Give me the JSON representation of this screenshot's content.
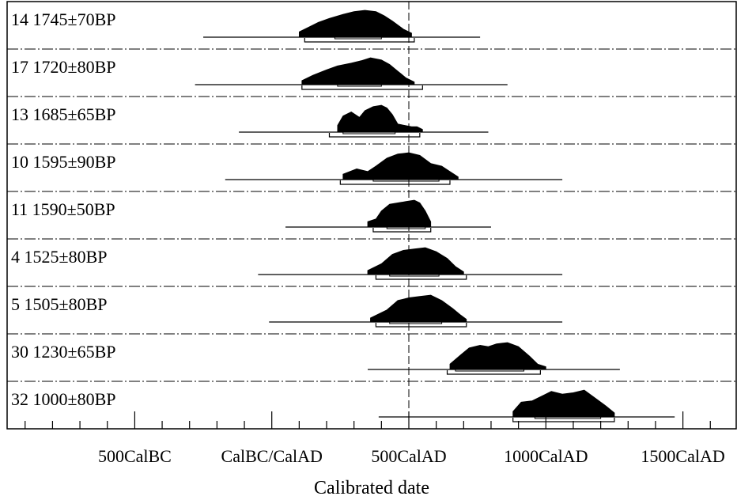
{
  "chart_data": {
    "type": "area",
    "title": "",
    "xlabel": "Calibrated date",
    "ylabel": "",
    "xlim": [
      -950,
      1720
    ],
    "x_ticks": [
      {
        "value": -500,
        "label": "500CalBC"
      },
      {
        "value": 0,
        "label": "CalBC/CalAD"
      },
      {
        "value": 500,
        "label": "500CalAD"
      },
      {
        "value": 1000,
        "label": "1000CalAD"
      },
      {
        "value": 1500,
        "label": "1500CalAD"
      }
    ],
    "reference_line_x": 500,
    "samples": [
      {
        "label": "14 1745±70BP",
        "range_start": -250,
        "range_end": 760,
        "peaks": [
          [
            100,
            0.2
          ],
          [
            130,
            0.35
          ],
          [
            170,
            0.55
          ],
          [
            210,
            0.7
          ],
          [
            260,
            0.85
          ],
          [
            300,
            0.95
          ],
          [
            340,
            1.0
          ],
          [
            380,
            0.95
          ],
          [
            410,
            0.8
          ],
          [
            440,
            0.6
          ],
          [
            480,
            0.3
          ],
          [
            510,
            0.15
          ]
        ],
        "sigma1": [
          [
            230,
            400
          ]
        ],
        "sigma2": [
          [
            120,
            520
          ]
        ]
      },
      {
        "label": "17 1720±80BP",
        "range_start": -280,
        "range_end": 860,
        "peaks": [
          [
            110,
            0.15
          ],
          [
            150,
            0.35
          ],
          [
            200,
            0.55
          ],
          [
            240,
            0.7
          ],
          [
            290,
            0.8
          ],
          [
            330,
            0.9
          ],
          [
            360,
            1.0
          ],
          [
            400,
            0.92
          ],
          [
            430,
            0.75
          ],
          [
            460,
            0.5
          ],
          [
            490,
            0.25
          ],
          [
            520,
            0.1
          ]
        ],
        "sigma1": [
          [
            240,
            400
          ]
        ],
        "sigma2": [
          [
            110,
            550
          ]
        ]
      },
      {
        "label": "13 1685±65BP",
        "range_start": -120,
        "range_end": 790,
        "peaks": [
          [
            240,
            0.25
          ],
          [
            260,
            0.6
          ],
          [
            290,
            0.75
          ],
          [
            320,
            0.55
          ],
          [
            340,
            0.8
          ],
          [
            370,
            0.95
          ],
          [
            400,
            1.0
          ],
          [
            420,
            0.9
          ],
          [
            440,
            0.65
          ],
          [
            460,
            0.3
          ],
          [
            510,
            0.2
          ],
          [
            530,
            0.2
          ],
          [
            550,
            0.1
          ]
        ],
        "sigma1": [
          [
            260,
            450
          ]
        ],
        "sigma2": [
          [
            210,
            540
          ]
        ]
      },
      {
        "label": "10 1595±90BP",
        "range_start": -170,
        "range_end": 1060,
        "peaks": [
          [
            260,
            0.2
          ],
          [
            310,
            0.4
          ],
          [
            350,
            0.3
          ],
          [
            380,
            0.5
          ],
          [
            420,
            0.8
          ],
          [
            460,
            0.95
          ],
          [
            500,
            1.0
          ],
          [
            540,
            0.9
          ],
          [
            580,
            0.6
          ],
          [
            620,
            0.5
          ],
          [
            650,
            0.3
          ],
          [
            680,
            0.1
          ]
        ],
        "sigma1": [
          [
            370,
            610
          ]
        ],
        "sigma2": [
          [
            250,
            650
          ]
        ]
      },
      {
        "label": "11 1590±50BP",
        "range_start": 50,
        "range_end": 800,
        "peaks": [
          [
            350,
            0.2
          ],
          [
            380,
            0.3
          ],
          [
            400,
            0.6
          ],
          [
            430,
            0.85
          ],
          [
            460,
            0.9
          ],
          [
            490,
            0.95
          ],
          [
            520,
            1.0
          ],
          [
            540,
            0.9
          ],
          [
            560,
            0.6
          ],
          [
            580,
            0.2
          ]
        ],
        "sigma1": [
          [
            420,
            560
          ]
        ],
        "sigma2": [
          [
            370,
            580
          ]
        ]
      },
      {
        "label": "4 1525±80BP",
        "range_start": -50,
        "range_end": 1060,
        "peaks": [
          [
            350,
            0.15
          ],
          [
            400,
            0.4
          ],
          [
            440,
            0.75
          ],
          [
            480,
            0.9
          ],
          [
            520,
            0.95
          ],
          [
            560,
            1.0
          ],
          [
            600,
            0.85
          ],
          [
            640,
            0.6
          ],
          [
            670,
            0.3
          ],
          [
            700,
            0.1
          ]
        ],
        "sigma1": [
          [
            430,
            610
          ]
        ],
        "sigma2": [
          [
            380,
            710
          ]
        ]
      },
      {
        "label": "5 1505±80BP",
        "range_start": -10,
        "range_end": 1060,
        "peaks": [
          [
            360,
            0.15
          ],
          [
            420,
            0.45
          ],
          [
            460,
            0.8
          ],
          [
            500,
            0.9
          ],
          [
            540,
            0.95
          ],
          [
            580,
            1.0
          ],
          [
            620,
            0.8
          ],
          [
            660,
            0.5
          ],
          [
            690,
            0.25
          ],
          [
            710,
            0.1
          ]
        ],
        "sigma1": [
          [
            430,
            620
          ]
        ],
        "sigma2": [
          [
            380,
            710
          ]
        ]
      },
      {
        "label": "30 1230±65BP",
        "range_start": 350,
        "range_end": 1270,
        "peaks": [
          [
            650,
            0.2
          ],
          [
            690,
            0.55
          ],
          [
            720,
            0.8
          ],
          [
            760,
            0.9
          ],
          [
            790,
            0.85
          ],
          [
            820,
            0.95
          ],
          [
            860,
            1.0
          ],
          [
            900,
            0.85
          ],
          [
            940,
            0.5
          ],
          [
            970,
            0.2
          ],
          [
            1000,
            0.1
          ]
        ],
        "sigma1": [
          [
            670,
            920
          ]
        ],
        "sigma2": [
          [
            640,
            980
          ]
        ]
      },
      {
        "label": "32 1000±80BP",
        "range_start": 390,
        "range_end": 1470,
        "peaks": [
          [
            880,
            0.2
          ],
          [
            910,
            0.55
          ],
          [
            950,
            0.6
          ],
          [
            990,
            0.8
          ],
          [
            1020,
            0.95
          ],
          [
            1060,
            0.85
          ],
          [
            1100,
            0.9
          ],
          [
            1140,
            1.0
          ],
          [
            1180,
            0.7
          ],
          [
            1220,
            0.4
          ],
          [
            1250,
            0.15
          ]
        ],
        "sigma1": [
          [
            960,
            1200
          ]
        ],
        "sigma2": [
          [
            880,
            1250
          ]
        ]
      }
    ]
  }
}
